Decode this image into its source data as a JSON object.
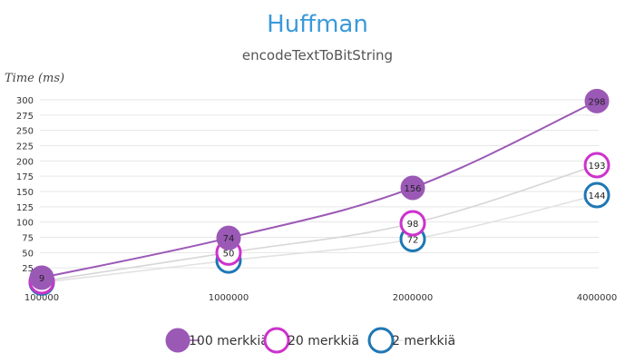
{
  "colors": {
    "title": "#3a9ad9",
    "grid": "#e6e6e6"
  },
  "chart_data": {
    "type": "line",
    "title": "Huffman",
    "subtitle": "encodeTextToBitString",
    "ylabel": "Time (ms)",
    "xlabel": "",
    "x_scale": "categorical",
    "categories": [
      "100000",
      "1000000",
      "2000000",
      "4000000"
    ],
    "ylim": [
      0,
      300
    ],
    "y_ticks": [
      25,
      50,
      75,
      100,
      125,
      150,
      175,
      200,
      225,
      250,
      275,
      300
    ],
    "grid": true,
    "legend_position": "bottom",
    "series": [
      {
        "name": "100 merkkiä",
        "values": [
          9,
          74,
          156,
          298
        ],
        "line_color": "#9b59b6",
        "marker_fill": "#9b59b6",
        "marker_stroke": "#9b59b6",
        "label_color": "#222222"
      },
      {
        "name": "20 merkkiä",
        "values": [
          3,
          50,
          98,
          193
        ],
        "line_color": "#d6d6d6",
        "marker_fill": "#ffffff",
        "marker_stroke": "#cc33cc",
        "label_color": "#222222"
      },
      {
        "name": "2 merkkiä",
        "values": [
          1,
          37,
          72,
          144
        ],
        "line_color": "#e2e2e2",
        "marker_fill": "#ffffff",
        "marker_stroke": "#1f77b4",
        "label_color": "#222222"
      }
    ]
  }
}
